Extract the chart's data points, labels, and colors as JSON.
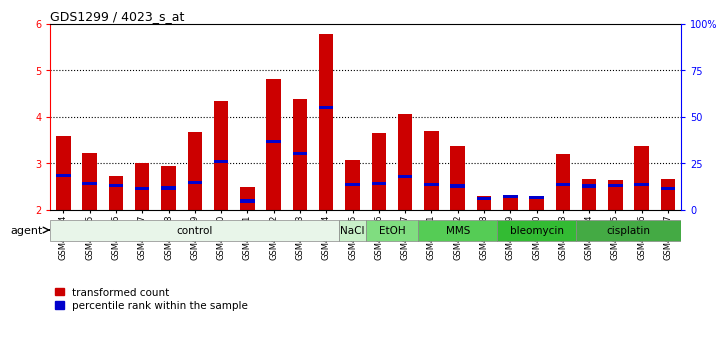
{
  "title": "GDS1299 / 4023_s_at",
  "samples": [
    "GSM40714",
    "GSM40715",
    "GSM40716",
    "GSM40717",
    "GSM40718",
    "GSM40719",
    "GSM40720",
    "GSM40721",
    "GSM40722",
    "GSM40723",
    "GSM40724",
    "GSM40725",
    "GSM40726",
    "GSM40727",
    "GSM40731",
    "GSM40732",
    "GSM40728",
    "GSM40729",
    "GSM40730",
    "GSM40733",
    "GSM40734",
    "GSM40735",
    "GSM40736",
    "GSM40737"
  ],
  "transformed_count": [
    3.58,
    3.22,
    2.72,
    3.01,
    2.93,
    3.67,
    4.33,
    2.49,
    4.8,
    4.38,
    5.78,
    3.07,
    3.65,
    4.06,
    3.7,
    3.38,
    2.29,
    2.31,
    2.27,
    3.19,
    2.67,
    2.65,
    3.38,
    2.67
  ],
  "percentile_rank_y": [
    2.73,
    2.56,
    2.52,
    2.46,
    2.47,
    2.58,
    3.03,
    2.19,
    3.47,
    3.21,
    4.19,
    2.54,
    2.57,
    2.72,
    2.55,
    2.51,
    2.25,
    2.29,
    2.26,
    2.54,
    2.51,
    2.52,
    2.54,
    2.46
  ],
  "agents": [
    {
      "label": "control",
      "start": 0,
      "end": 11,
      "color": "#e8f5e9"
    },
    {
      "label": "NaCl",
      "start": 11,
      "end": 12,
      "color": "#c8f0c8"
    },
    {
      "label": "EtOH",
      "start": 12,
      "end": 14,
      "color": "#80dd80"
    },
    {
      "label": "MMS",
      "start": 14,
      "end": 17,
      "color": "#55cc55"
    },
    {
      "label": "bleomycin",
      "start": 17,
      "end": 20,
      "color": "#33bb33"
    },
    {
      "label": "cisplatin",
      "start": 20,
      "end": 24,
      "color": "#44aa44"
    }
  ],
  "ylim_left": [
    2,
    6
  ],
  "ylim_right": [
    0,
    100
  ],
  "yticks_left": [
    2,
    3,
    4,
    5,
    6
  ],
  "yticks_right": [
    0,
    25,
    50,
    75,
    100
  ],
  "ytick_labels_right": [
    "0",
    "25",
    "50",
    "75",
    "100%"
  ],
  "bar_color": "#cc0000",
  "percentile_color": "#0000cc",
  "bar_width": 0.55,
  "legend_label_transformed": "transformed count",
  "legend_label_percentile": "percentile rank within the sample"
}
